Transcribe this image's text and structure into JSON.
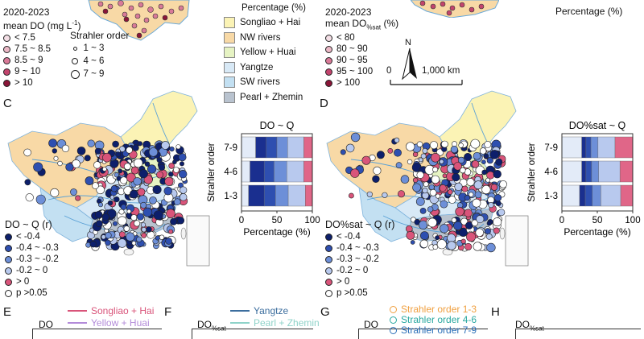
{
  "panel_labels": {
    "c": "C",
    "d": "D",
    "e": "E",
    "f": "F",
    "g": "G",
    "h": "H"
  },
  "panel_a_legend": {
    "title_line1": "2020-2023",
    "title_line2": "mean DO (mg L",
    "title_sup": "-1",
    "title_end": ")",
    "classes": [
      {
        "label": "< 7.5",
        "color": "#f4dfe6"
      },
      {
        "label": "7.5 ~ 8.5",
        "color": "#ebb8c6"
      },
      {
        "label": "8.5 ~ 9",
        "color": "#d97a98"
      },
      {
        "label": "9 ~ 10",
        "color": "#c2446d"
      },
      {
        "label": "> 10",
        "color": "#8a1538"
      }
    ],
    "strahler_title": "Strahler order",
    "strahler": [
      {
        "label": "1 ~ 3"
      },
      {
        "label": "4 ~ 6"
      },
      {
        "label": "7 ~ 9"
      }
    ]
  },
  "basin_legend": {
    "title": "Percentage (%)",
    "items": [
      {
        "label": "Songliao + Hai",
        "color": "#fbf3b5"
      },
      {
        "label": "NW rivers",
        "color": "#f8d9a6"
      },
      {
        "label": "Yellow + Huai",
        "color": "#e6f3c3"
      },
      {
        "label": "Yangtze",
        "color": "#d8e9f6"
      },
      {
        "label": "SW rivers",
        "color": "#c3e0f2"
      },
      {
        "label": "Pearl + Zhemin",
        "color": "#b9c3cf"
      }
    ]
  },
  "panel_b_legend": {
    "title_line1": "2020-2023",
    "title_line2": "mean DO",
    "title_sub": "%sat",
    "title_end": " (%)",
    "classes": [
      {
        "label": "< 80",
        "color": "#f4dfe6"
      },
      {
        "label": "80 ~ 90",
        "color": "#ebb8c6"
      },
      {
        "label": "90 ~ 95",
        "color": "#d97a98"
      },
      {
        "label": "95 ~ 100",
        "color": "#c2446d"
      },
      {
        "label": "> 100",
        "color": "#8a1538"
      }
    ],
    "north": "N",
    "scale_zero": "0",
    "scale_end": "1,000 km",
    "top_axis_label": "Percentage (%)"
  },
  "panel_c_legend": {
    "title": "DO ~ Q (r)",
    "classes": [
      {
        "label": "< -0.4",
        "color": "#0d1f6b"
      },
      {
        "label": "-0.4 ~ -0.3",
        "color": "#2e4fb0"
      },
      {
        "label": "-0.3 ~ -0.2",
        "color": "#6d8fd8"
      },
      {
        "label": "-0.2 ~ 0",
        "color": "#b8c9ee"
      },
      {
        "label": "> 0",
        "color": "#d9547a"
      },
      {
        "label": "p >0.05",
        "color": "#ffffff"
      }
    ]
  },
  "panel_d_legend": {
    "title": "DO%sat ~ Q (r)",
    "classes": [
      {
        "label": "< -0.4",
        "color": "#0d1f6b"
      },
      {
        "label": "-0.4 ~ -0.3",
        "color": "#2e4fb0"
      },
      {
        "label": "-0.3 ~ -0.2",
        "color": "#6d8fd8"
      },
      {
        "label": "-0.2 ~ 0",
        "color": "#b8c9ee"
      },
      {
        "label": "> 0",
        "color": "#d9547a"
      },
      {
        "label": "p >0.05",
        "color": "#ffffff"
      }
    ]
  },
  "chart_data": [
    {
      "type": "bar",
      "title": "DO ~ Q",
      "xlabel": "Percentage (%)",
      "ylabel": "Strahler order",
      "categories": [
        "7-9",
        "4-6",
        "1-3"
      ],
      "xlim": [
        0,
        100
      ],
      "xticks": [
        "0",
        "50",
        "100"
      ],
      "stacked": true,
      "series": [
        {
          "values": [
            20,
            12,
            10
          ],
          "color": "#e3ebf8"
        },
        {
          "values": [
            15,
            20,
            22
          ],
          "color": "#1a2f8f"
        },
        {
          "values": [
            15,
            14,
            16
          ],
          "color": "#2e4fb0"
        },
        {
          "values": [
            15,
            18,
            18
          ],
          "color": "#6d8fd8"
        },
        {
          "values": [
            23,
            24,
            24
          ],
          "color": "#b8c9ee"
        },
        {
          "values": [
            12,
            12,
            10
          ],
          "color": "#e06688"
        }
      ]
    },
    {
      "type": "bar",
      "title": "DO%sat ~ Q",
      "xlabel": "Percentage (%)",
      "ylabel": "Strahler order",
      "categories": [
        "7-9",
        "4-6",
        "1-3"
      ],
      "xlim": [
        0,
        100
      ],
      "xticks": [
        "0",
        "50",
        "100"
      ],
      "stacked": true,
      "series": [
        {
          "values": [
            28,
            28,
            25
          ],
          "color": "#e3ebf8"
        },
        {
          "values": [
            6,
            6,
            8
          ],
          "color": "#1a2f8f"
        },
        {
          "values": [
            7,
            8,
            10
          ],
          "color": "#2e4fb0"
        },
        {
          "values": [
            10,
            10,
            12
          ],
          "color": "#6d8fd8"
        },
        {
          "values": [
            24,
            30,
            28
          ],
          "color": "#b8c9ee"
        },
        {
          "values": [
            25,
            18,
            17
          ],
          "color": "#e06688"
        }
      ]
    }
  ],
  "bottom_row": {
    "e_title": "DO",
    "e_legend": [
      {
        "label": "Songliao + Hai",
        "color": "#d9547a"
      },
      {
        "label": "Yellow + Huai",
        "color": "#b38bd9"
      }
    ],
    "f_title": "DO",
    "f_sub": "%sat",
    "f_legend": [
      {
        "label": "Yangtze",
        "color": "#3c6e9e"
      },
      {
        "label": "Pearl + Zhemin",
        "color": "#8fd3c9"
      }
    ],
    "g_title": "DO",
    "g_legend": [
      {
        "label": "Strahler order 1-3",
        "color": "#f0a040"
      },
      {
        "label": "Strahler order 4-6",
        "color": "#2aa8a0"
      },
      {
        "label": "Strahler order 7-9",
        "color": "#2b6fb8"
      }
    ],
    "h_title": "DO",
    "h_sub": "%sat"
  }
}
